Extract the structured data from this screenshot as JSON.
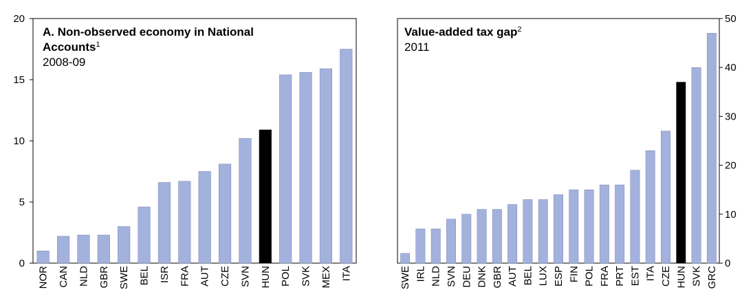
{
  "chart_data": [
    {
      "type": "bar",
      "title": "A. Non-observed economy in National Accounts",
      "title_note": "1",
      "subtitle": "2008-09",
      "categories": [
        "NOR",
        "CAN",
        "NLD",
        "GBR",
        "SWE",
        "BEL",
        "ISR",
        "FRA",
        "AUT",
        "CZE",
        "SVN",
        "HUN",
        "POL",
        "SVK",
        "MEX",
        "ITA"
      ],
      "values": [
        1.0,
        2.2,
        2.3,
        2.3,
        3.0,
        4.6,
        6.6,
        6.7,
        7.5,
        8.1,
        10.2,
        10.9,
        15.4,
        15.6,
        15.9,
        17.5
      ],
      "colors": [
        "#a3b1dd",
        "#a3b1dd",
        "#a3b1dd",
        "#a3b1dd",
        "#a3b1dd",
        "#a3b1dd",
        "#a3b1dd",
        "#a3b1dd",
        "#a3b1dd",
        "#a3b1dd",
        "#a3b1dd",
        "#000000",
        "#a3b1dd",
        "#a3b1dd",
        "#a3b1dd",
        "#a3b1dd"
      ],
      "ylim": [
        0,
        20
      ],
      "yticks": [
        0,
        5,
        10,
        15,
        20
      ],
      "axis_side": "left"
    },
    {
      "type": "bar",
      "title": "Value-added tax gap",
      "title_note": "2",
      "subtitle": "2011",
      "categories": [
        "SWE",
        "IRL",
        "NLD",
        "SVN",
        "DEU",
        "DNK",
        "GBR",
        "AUT",
        "BEL",
        "LUX",
        "ESP",
        "FIN",
        "POL",
        "FRA",
        "PRT",
        "EST",
        "ITA",
        "CZE",
        "HUN",
        "SVK",
        "GRC"
      ],
      "values": [
        2,
        7,
        7,
        9,
        10,
        11,
        11,
        12,
        13,
        13,
        14,
        15,
        15,
        16,
        16,
        19,
        23,
        27,
        37,
        40,
        47
      ],
      "colors": [
        "#a3b1dd",
        "#a3b1dd",
        "#a3b1dd",
        "#a3b1dd",
        "#a3b1dd",
        "#a3b1dd",
        "#a3b1dd",
        "#a3b1dd",
        "#a3b1dd",
        "#a3b1dd",
        "#a3b1dd",
        "#a3b1dd",
        "#a3b1dd",
        "#a3b1dd",
        "#a3b1dd",
        "#a3b1dd",
        "#a3b1dd",
        "#a3b1dd",
        "#000000",
        "#a3b1dd",
        "#a3b1dd"
      ],
      "ylim": [
        0,
        50
      ],
      "yticks": [
        0,
        10,
        20,
        30,
        40,
        50
      ],
      "axis_side": "right"
    }
  ]
}
